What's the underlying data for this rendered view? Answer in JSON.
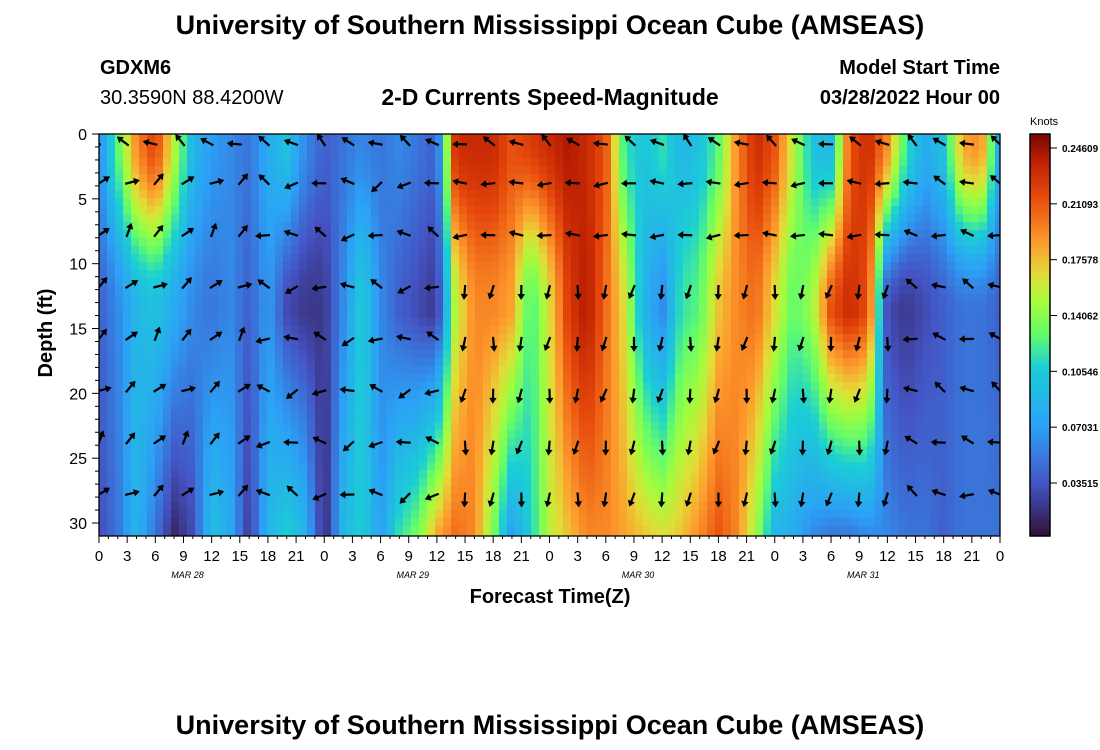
{
  "header": {
    "title": "University of Southern Mississippi Ocean Cube (AMSEAS)",
    "station_id": "GDXM6",
    "coordinates": "30.3590N  88.4200W",
    "subtitle": "2-D Currents Speed-Magnitude",
    "model_start_label": "Model Start Time",
    "model_start_value": "03/28/2022 Hour 00"
  },
  "footer": {
    "repeated_title": "University of Southern Mississippi Ocean Cube (AMSEAS)"
  },
  "chart_data": {
    "type": "heatmap",
    "title": "2-D Currents Speed-Magnitude",
    "xlabel": "Forecast Time(Z)",
    "ylabel": "Depth (ft)",
    "ylim": [
      0,
      31
    ],
    "y_reversed": true,
    "y_ticks": [
      "0",
      "5",
      "10",
      "15",
      "20",
      "25",
      "30"
    ],
    "x_ticks": [
      "0",
      "3",
      "6",
      "9",
      "12",
      "15",
      "18",
      "21",
      "0",
      "3",
      "6",
      "9",
      "12",
      "15",
      "18",
      "21",
      "0",
      "3",
      "6",
      "9",
      "12",
      "15",
      "18",
      "21",
      "0",
      "3",
      "6",
      "9",
      "12",
      "15",
      "18",
      "21",
      "0"
    ],
    "x_hours_range": [
      0,
      96
    ],
    "date_labels": [
      {
        "text": "MAR 28",
        "hour": 9
      },
      {
        "text": "MAR 29",
        "hour": 33
      },
      {
        "text": "MAR 30",
        "hour": 57
      },
      {
        "text": "MAR 31",
        "hour": 81
      }
    ],
    "colorbar": {
      "unit": "Knots",
      "ticks": [
        "0.24609",
        "0.21093",
        "0.17578",
        "0.14062",
        "0.10546",
        "0.07031",
        "0.03515"
      ],
      "min": 0.0,
      "max": 0.264
    },
    "vector_depths": [
      0.8,
      3.8,
      7.8,
      11.8,
      15.8,
      19.8,
      23.8,
      27.8
    ],
    "vector_times": [
      0,
      3,
      6,
      9,
      12,
      15,
      18,
      21,
      24,
      27,
      30,
      33,
      36,
      39,
      42,
      45,
      48,
      51,
      54,
      57,
      60,
      63,
      66,
      69,
      72,
      75,
      78,
      81,
      84,
      87,
      90,
      93,
      96
    ],
    "speed_profile_hours": [
      0,
      2,
      4,
      6,
      8,
      10,
      12,
      14,
      16,
      18,
      20,
      22,
      24,
      26,
      28,
      30,
      32,
      34,
      36,
      38,
      40,
      42,
      44,
      46,
      48,
      50,
      52,
      54,
      56,
      58,
      60,
      62,
      64,
      66,
      68,
      70,
      72,
      74,
      76,
      78,
      80,
      82,
      84,
      86,
      88,
      90,
      92,
      94,
      96
    ],
    "speed_surface": [
      0.06,
      0.13,
      0.2,
      0.23,
      0.16,
      0.09,
      0.07,
      0.06,
      0.05,
      0.08,
      0.1,
      0.06,
      0.04,
      0.05,
      0.06,
      0.05,
      0.06,
      0.05,
      0.04,
      0.24,
      0.24,
      0.24,
      0.22,
      0.23,
      0.24,
      0.25,
      0.24,
      0.22,
      0.12,
      0.1,
      0.12,
      0.09,
      0.1,
      0.13,
      0.2,
      0.24,
      0.22,
      0.16,
      0.1,
      0.09,
      0.22,
      0.24,
      0.2,
      0.12,
      0.08,
      0.1,
      0.19,
      0.2,
      0.08
    ],
    "speed_mid": [
      0.04,
      0.06,
      0.09,
      0.1,
      0.08,
      0.06,
      0.05,
      0.06,
      0.04,
      0.07,
      0.03,
      0.02,
      0.02,
      0.06,
      0.11,
      0.06,
      0.04,
      0.03,
      0.02,
      0.16,
      0.2,
      0.2,
      0.19,
      0.12,
      0.17,
      0.23,
      0.25,
      0.21,
      0.17,
      0.09,
      0.06,
      0.12,
      0.13,
      0.18,
      0.2,
      0.21,
      0.17,
      0.13,
      0.15,
      0.22,
      0.24,
      0.22,
      0.03,
      0.02,
      0.03,
      0.04,
      0.05,
      0.05,
      0.04
    ],
    "speed_bottom": [
      0.03,
      0.05,
      0.09,
      0.05,
      0.01,
      0.03,
      0.1,
      0.08,
      0.02,
      0.09,
      0.11,
      0.09,
      0.01,
      0.09,
      0.11,
      0.07,
      0.12,
      0.14,
      0.19,
      0.21,
      0.2,
      0.14,
      0.07,
      0.11,
      0.16,
      0.18,
      0.2,
      0.2,
      0.19,
      0.18,
      0.17,
      0.18,
      0.2,
      0.22,
      0.2,
      0.15,
      0.09,
      0.08,
      0.06,
      0.05,
      0.05,
      0.06,
      0.06,
      0.05,
      0.05,
      0.04,
      0.05,
      0.05,
      0.05
    ]
  }
}
